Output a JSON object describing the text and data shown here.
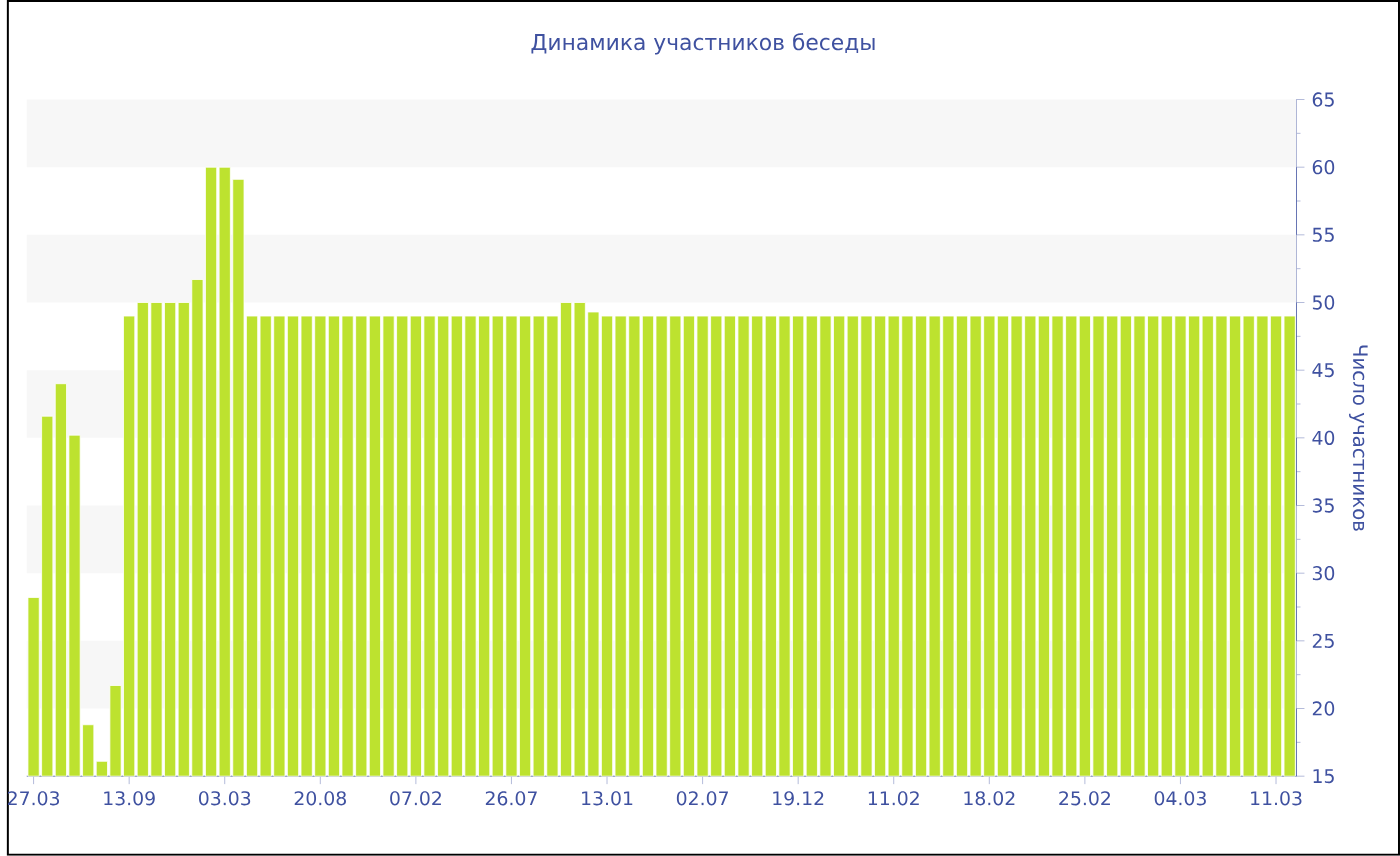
{
  "chart_data": {
    "type": "bar",
    "title": "Динамика участников беседы",
    "ylabel": "Число участников",
    "categories": [
      "27.03",
      null,
      null,
      null,
      null,
      null,
      null,
      "13.09",
      null,
      null,
      null,
      null,
      null,
      null,
      "03.03",
      null,
      null,
      null,
      null,
      null,
      null,
      "20.08",
      null,
      null,
      null,
      null,
      null,
      null,
      "07.02",
      null,
      null,
      null,
      null,
      null,
      null,
      "26.07",
      null,
      null,
      null,
      null,
      null,
      null,
      "13.01",
      null,
      null,
      null,
      null,
      null,
      null,
      "02.07",
      null,
      null,
      null,
      null,
      null,
      null,
      "19.12",
      null,
      null,
      null,
      null,
      null,
      null,
      "11.02",
      null,
      null,
      null,
      null,
      null,
      null,
      "18.02",
      null,
      null,
      null,
      null,
      null,
      null,
      "25.02",
      null,
      null,
      null,
      null,
      null,
      null,
      "04.03",
      null,
      null,
      null,
      null,
      null,
      null,
      "11.03",
      null
    ],
    "values": [
      28.2,
      41.6,
      44,
      40.2,
      18.8,
      16.1,
      21.7,
      49,
      50,
      50,
      50,
      50,
      51.7,
      60,
      60,
      59.1,
      49,
      49,
      49,
      49,
      49,
      49,
      49,
      49,
      49,
      49,
      49,
      49,
      49,
      49,
      49,
      49,
      49,
      49,
      49,
      49,
      49,
      49,
      49,
      50,
      50,
      49.3,
      49,
      49,
      49,
      49,
      49,
      49,
      49,
      49,
      49,
      49,
      49,
      49,
      49,
      49,
      49,
      49,
      49,
      49,
      49,
      49,
      49,
      49,
      49,
      49,
      49,
      49,
      49,
      49,
      49,
      49,
      49,
      49,
      49,
      49,
      49,
      49,
      49,
      49,
      49,
      49,
      49,
      49,
      49,
      49,
      49,
      49,
      49,
      49,
      49,
      49,
      49
    ],
    "color": "#bde22f",
    "ylim": [
      15,
      65
    ],
    "yticks": [
      15,
      20,
      25,
      30,
      35,
      40,
      45,
      50,
      55,
      60,
      65
    ],
    "bands": [
      {
        "axis": "y",
        "from": 20,
        "to": 25,
        "color": "#f7f7f7"
      },
      {
        "axis": "y",
        "from": 30,
        "to": 35,
        "color": "#f7f7f7"
      },
      {
        "axis": "y",
        "from": 40,
        "to": 45,
        "color": "#f7f7f7"
      },
      {
        "axis": "y",
        "from": 50,
        "to": 55,
        "color": "#f7f7f7"
      },
      {
        "axis": "y",
        "from": 60,
        "to": 65,
        "color": "#f7f7f7"
      }
    ]
  }
}
